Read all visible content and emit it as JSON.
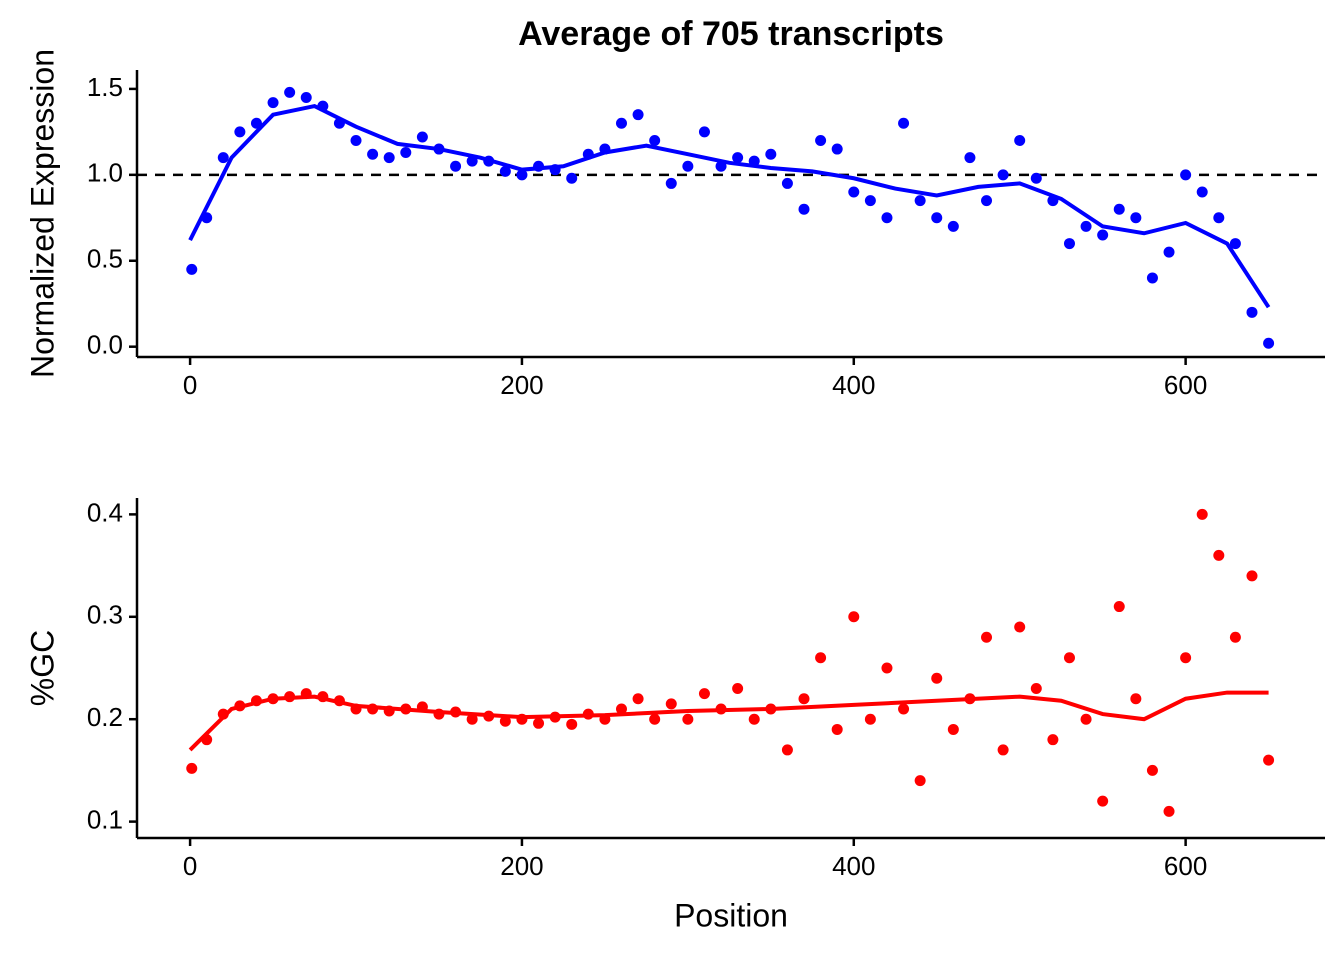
{
  "chart_data": [
    {
      "type": "scatter",
      "title": "Average of 705 transcripts",
      "y_label": "Normalized Expression",
      "color": "#0000ff",
      "x": [
        1,
        10,
        20,
        30,
        40,
        50,
        60,
        70,
        80,
        90,
        100,
        110,
        120,
        130,
        140,
        150,
        160,
        170,
        180,
        190,
        200,
        210,
        220,
        230,
        240,
        250,
        260,
        270,
        280,
        290,
        300,
        310,
        320,
        330,
        340,
        350,
        360,
        370,
        380,
        390,
        400,
        410,
        420,
        430,
        440,
        450,
        460,
        470,
        480,
        490,
        500,
        510,
        520,
        530,
        540,
        550,
        560,
        570,
        580,
        590,
        600,
        610,
        620,
        630,
        640,
        650
      ],
      "values": [
        0.45,
        0.75,
        1.1,
        1.25,
        1.3,
        1.42,
        1.48,
        1.45,
        1.4,
        1.3,
        1.2,
        1.12,
        1.1,
        1.13,
        1.22,
        1.15,
        1.05,
        1.08,
        1.08,
        1.02,
        1.0,
        1.05,
        1.03,
        0.98,
        1.12,
        1.15,
        1.3,
        1.35,
        1.2,
        0.95,
        1.05,
        1.25,
        1.05,
        1.1,
        1.08,
        1.12,
        0.95,
        0.8,
        1.2,
        1.15,
        0.9,
        0.85,
        0.75,
        1.3,
        0.85,
        0.75,
        0.7,
        1.1,
        0.85,
        1.0,
        1.2,
        0.98,
        0.85,
        0.6,
        0.7,
        0.65,
        0.8,
        0.75,
        0.4,
        0.55,
        1.0,
        0.9,
        0.75,
        0.6,
        0.2,
        0.02
      ],
      "smooth": {
        "x": [
          0,
          25,
          50,
          75,
          100,
          125,
          150,
          175,
          200,
          225,
          250,
          275,
          300,
          325,
          350,
          375,
          400,
          425,
          450,
          475,
          500,
          525,
          550,
          575,
          600,
          625,
          650
        ],
        "values": [
          0.62,
          1.1,
          1.35,
          1.4,
          1.28,
          1.18,
          1.15,
          1.1,
          1.03,
          1.05,
          1.13,
          1.17,
          1.12,
          1.07,
          1.04,
          1.02,
          0.98,
          0.92,
          0.88,
          0.93,
          0.95,
          0.86,
          0.7,
          0.66,
          0.72,
          0.6,
          0.23
        ]
      },
      "reference_line": 1,
      "xlim": [
        -32,
        684
      ],
      "xticks": [
        0,
        200,
        400,
        600
      ],
      "ylim": [
        -0.06,
        1.61
      ],
      "yticks": [
        {
          "value": 0,
          "label": "0.0"
        },
        0.5,
        {
          "value": 1,
          "label": "1.0"
        },
        1.5
      ]
    },
    {
      "type": "scatter",
      "y_label": "%GC",
      "x_label": "Position",
      "color": "#ff0000",
      "x": [
        1,
        10,
        20,
        30,
        40,
        50,
        60,
        70,
        80,
        90,
        100,
        110,
        120,
        130,
        140,
        150,
        160,
        170,
        180,
        190,
        200,
        210,
        220,
        230,
        240,
        250,
        260,
        270,
        280,
        290,
        300,
        310,
        320,
        330,
        340,
        350,
        360,
        370,
        380,
        390,
        400,
        410,
        420,
        430,
        440,
        450,
        460,
        470,
        480,
        490,
        500,
        510,
        520,
        530,
        540,
        550,
        560,
        570,
        580,
        590,
        600,
        610,
        620,
        630,
        640,
        650
      ],
      "values": [
        0.152,
        0.18,
        0.205,
        0.213,
        0.218,
        0.22,
        0.222,
        0.225,
        0.222,
        0.218,
        0.21,
        0.21,
        0.208,
        0.21,
        0.212,
        0.205,
        0.207,
        0.2,
        0.203,
        0.198,
        0.2,
        0.196,
        0.202,
        0.195,
        0.205,
        0.2,
        0.21,
        0.22,
        0.2,
        0.215,
        0.2,
        0.225,
        0.21,
        0.23,
        0.2,
        0.21,
        0.17,
        0.22,
        0.26,
        0.19,
        0.3,
        0.2,
        0.25,
        0.21,
        0.14,
        0.24,
        0.19,
        0.22,
        0.28,
        0.17,
        0.29,
        0.23,
        0.18,
        0.26,
        0.2,
        0.12,
        0.31,
        0.22,
        0.15,
        0.11,
        0.26,
        0.4,
        0.36,
        0.28,
        0.34,
        0.16
      ],
      "smooth": {
        "x": [
          0,
          25,
          50,
          75,
          100,
          150,
          200,
          250,
          300,
          350,
          400,
          450,
          500,
          525,
          550,
          575,
          600,
          625,
          650
        ],
        "values": [
          0.17,
          0.21,
          0.22,
          0.222,
          0.213,
          0.207,
          0.202,
          0.204,
          0.208,
          0.21,
          0.214,
          0.218,
          0.222,
          0.218,
          0.205,
          0.2,
          0.22,
          0.226,
          0.226
        ]
      },
      "xlim": [
        -32,
        684
      ],
      "xticks": [
        0,
        200,
        400,
        600
      ],
      "ylim": [
        0.084,
        0.416
      ],
      "yticks": [
        0.1,
        0.2,
        0.3,
        0.4
      ]
    }
  ]
}
